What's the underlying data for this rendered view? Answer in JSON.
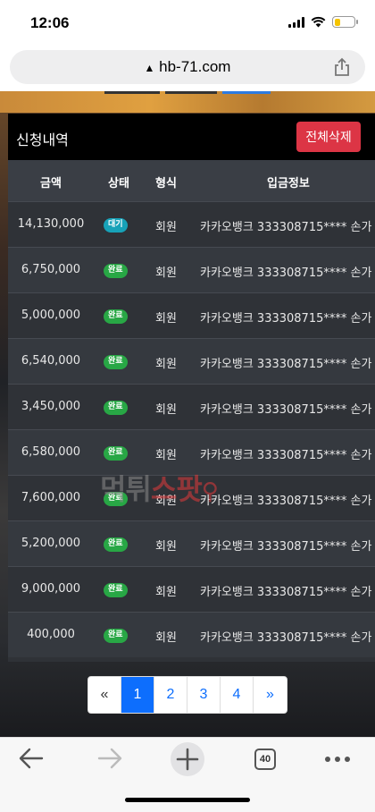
{
  "status_bar": {
    "time": "12:06"
  },
  "browser": {
    "url": "hb-71.com"
  },
  "panel": {
    "title": "신청내역",
    "delete_all_label": "전체삭제",
    "columns": [
      "금액",
      "상태",
      "형식",
      "입금정보"
    ]
  },
  "rows": [
    {
      "amount": "14,130,000",
      "status": "대기",
      "type": "회원",
      "info": "카카오뱅크 333308715**** 손가"
    },
    {
      "amount": "6,750,000",
      "status": "완료",
      "type": "회원",
      "info": "카카오뱅크 333308715**** 손가"
    },
    {
      "amount": "5,000,000",
      "status": "완료",
      "type": "회원",
      "info": "카카오뱅크 333308715**** 손가"
    },
    {
      "amount": "6,540,000",
      "status": "완료",
      "type": "회원",
      "info": "카카오뱅크 333308715**** 손가"
    },
    {
      "amount": "3,450,000",
      "status": "완료",
      "type": "회원",
      "info": "카카오뱅크 333308715**** 손가"
    },
    {
      "amount": "6,580,000",
      "status": "완료",
      "type": "회원",
      "info": "카카오뱅크 333308715**** 손가"
    },
    {
      "amount": "7,600,000",
      "status": "완료",
      "type": "회원",
      "info": "카카오뱅크 333308715**** 손가"
    },
    {
      "amount": "5,200,000",
      "status": "완료",
      "type": "회원",
      "info": "카카오뱅크 333308715**** 손가"
    },
    {
      "amount": "9,000,000",
      "status": "완료",
      "type": "회원",
      "info": "카카오뱅크 333308715**** 손가"
    },
    {
      "amount": "400,000",
      "status": "완료",
      "type": "회원",
      "info": "카카오뱅크 333308715**** 손가"
    }
  ],
  "status_colors": {
    "대기": "#17a2b8",
    "완료": "#28a745"
  },
  "pagination": {
    "prev": "«",
    "pages": [
      "1",
      "2",
      "3",
      "4"
    ],
    "next": "»",
    "active": "1"
  },
  "watermark": {
    "part1": "먹튀",
    "part2": "스팟"
  },
  "toolbar": {
    "tab_count": "40"
  }
}
